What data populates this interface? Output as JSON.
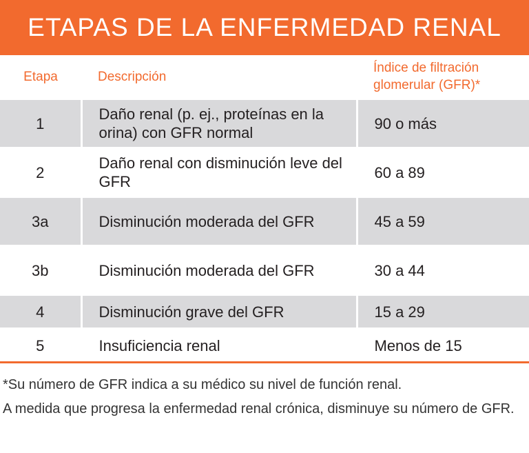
{
  "title": "ETAPAS DE LA ENFERMEDAD RENAL",
  "table": {
    "header": [
      "Etapa",
      "Descripción",
      "Índice de filtración glomerular (GFR)*"
    ],
    "rows": [
      [
        "1",
        "Daño renal (p. ej., proteínas en la orina) con GFR normal",
        "90 o más"
      ],
      [
        "2",
        "Daño renal con disminución leve del GFR",
        "60 a 89"
      ],
      [
        "3a",
        "Disminución moderada del GFR",
        "45 a 59"
      ],
      [
        "3b",
        "Disminución moderada del GFR",
        "30 a 44"
      ],
      [
        "4",
        "Disminución grave del GFR",
        "15 a 29"
      ],
      [
        "5",
        "Insuficiencia renal",
        "Menos de 15"
      ]
    ]
  },
  "footnote": [
    "*Su número de GFR indica a su médico su nivel de función renal.",
    "A medida que progresa la enfermedad renal crónica, disminuye su número de GFR."
  ]
}
